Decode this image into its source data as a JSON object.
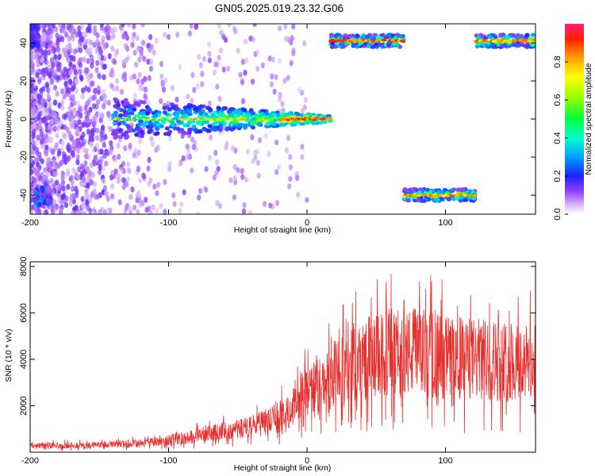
{
  "figure": {
    "title": "GN05.2025.019.23.32.G06"
  },
  "chart_data": [
    {
      "type": "heatmap",
      "title": "GN05.2025.019.23.32.G06",
      "xlabel": "Height of straight line (km)",
      "ylabel": "Frequency (Hz)",
      "xlim": [
        -200,
        165
      ],
      "ylim": [
        -50,
        50
      ],
      "xticks": [
        -200,
        -100,
        0,
        100
      ],
      "xtick_labels": [
        "-200",
        "-100",
        "0",
        "100"
      ],
      "yticks": [
        -40,
        -20,
        0,
        20,
        40
      ],
      "ytick_labels": [
        "-40",
        "-20",
        "0",
        "20",
        "40"
      ],
      "colorbar": {
        "label": "Normalized spectral amplitude",
        "range": [
          0,
          1
        ],
        "ticks": [
          0.0,
          0.2,
          0.4,
          0.6,
          0.8
        ],
        "tick_labels": [
          "0.0",
          "0.2",
          "0.4",
          "0.6",
          "0.8"
        ],
        "colormap": "rainbow"
      },
      "ridges": [
        {
          "x_start": -140,
          "x_end": 17,
          "frequency": 0,
          "peak_amplitude": 1.0
        },
        {
          "x_start": 17,
          "x_end": 70,
          "frequency": 41,
          "peak_amplitude": 0.95
        },
        {
          "x_start": 70,
          "x_end": 122,
          "frequency": -40,
          "peak_amplitude": 0.9
        },
        {
          "x_start": 122,
          "x_end": 165,
          "frequency": 41,
          "peak_amplitude": 0.9
        }
      ],
      "grid": false
    },
    {
      "type": "line",
      "xlabel": "Height of straight line (km)",
      "ylabel": "SNR (10 * v/v)",
      "xlim": [
        -200,
        165
      ],
      "ylim": [
        0,
        8200
      ],
      "xticks": [
        -200,
        -100,
        0,
        100
      ],
      "xtick_labels": [
        "-200",
        "-100",
        "0",
        "100"
      ],
      "yticks": [
        2000,
        4000,
        6000,
        8000
      ],
      "ytick_labels": [
        "2000",
        "4000",
        "6000",
        "8000"
      ],
      "color": "#e8302e",
      "grid": false,
      "trend": {
        "x": [
          -200,
          -150,
          -120,
          -100,
          -80,
          -60,
          -40,
          -20,
          0,
          20,
          40,
          60,
          80,
          100,
          120,
          140,
          165
        ],
        "y": [
          280,
          300,
          380,
          520,
          700,
          900,
          1100,
          1500,
          2500,
          3200,
          4000,
          4200,
          4300,
          4100,
          4000,
          3900,
          3800
        ]
      }
    }
  ]
}
